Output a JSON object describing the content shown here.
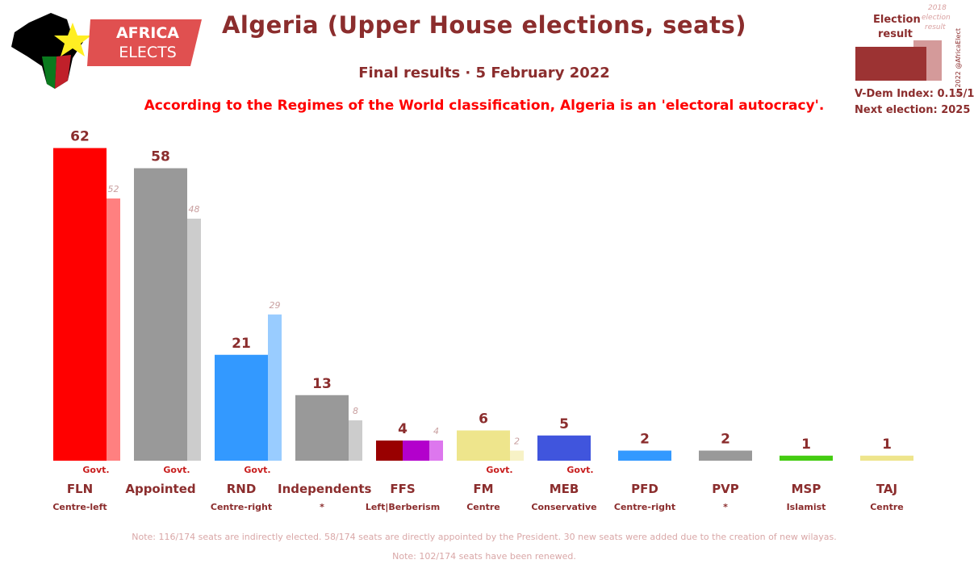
{
  "header": {
    "title": "Algeria (Upper House elections, seats)",
    "subtitle": "Final results · 5 February 2022",
    "regime_note": "According to the Regimes of the World classification, Algeria is an 'electoral autocracy'."
  },
  "logo": {
    "line1": "AFRICA",
    "line2": "ELECTS"
  },
  "legend": {
    "current_label_line1": "Election",
    "current_label_line2": "result",
    "previous_label_line1": "2018",
    "previous_label_line2": "election",
    "previous_label_line3": "result",
    "vdem": "V-Dem Index: 0.15/1",
    "next_election": "Next election: 2025",
    "copyright": "© 2022 @AfricaElect"
  },
  "chart_data": {
    "type": "bar",
    "title": "Algeria (Upper House elections, seats)",
    "categories": [
      "FLN",
      "Appointed",
      "RND",
      "Independents",
      "FFS",
      "FM",
      "MEB",
      "PFD",
      "PVP",
      "MSP",
      "TAJ"
    ],
    "series": [
      {
        "name": "Election result",
        "values": [
          62,
          58,
          21,
          13,
          4,
          6,
          5,
          2,
          2,
          1,
          1
        ]
      },
      {
        "name": "2018 election result",
        "values": [
          52,
          48,
          29,
          8,
          4,
          2,
          null,
          null,
          null,
          null,
          null
        ]
      }
    ],
    "current_labels": [
      "62",
      "58",
      "21",
      "13",
      "4",
      "6",
      "5",
      "2",
      "2",
      "1",
      "1"
    ],
    "previous_labels": [
      "52",
      "48",
      "29",
      "8",
      "4",
      "2",
      "",
      "",
      "",
      "",
      ""
    ],
    "ideologies": [
      "Centre-left",
      "",
      "Centre-right",
      "*",
      "Left|Berberism",
      "Centre",
      "Conservative",
      "Centre-right",
      "*",
      "Islamist",
      "Centre"
    ],
    "govt": [
      "Govt.",
      "Govt.",
      "Govt.",
      "",
      "",
      "Govt.",
      "Govt.",
      "",
      "",
      "",
      ""
    ],
    "colors": [
      "#ff0000",
      "#999999",
      "#3399ff",
      "#999999",
      "#990000",
      "#eee58c",
      "#4055dd",
      "#3399ff",
      "#999999",
      "#44cc11",
      "#eee58c"
    ],
    "prev_colors": [
      "#ff8080",
      "#cccccc",
      "#99ccff",
      "#cccccc",
      "#dd77ee",
      "#f7f2c6",
      "",
      "",
      "",
      "",
      ""
    ],
    "ffs_split_colors": [
      "#990000",
      "#b300cc"
    ],
    "ylim": [
      0,
      62
    ],
    "legend_position": "top-right"
  },
  "notes": {
    "line1": "Note: 116/174 seats are indirectly elected. 58/174 seats are directly appointed by the President. 30 new seats were added due to the creation of new wilayas.",
    "line2": "Note: 102/174 seats have been renewed."
  }
}
